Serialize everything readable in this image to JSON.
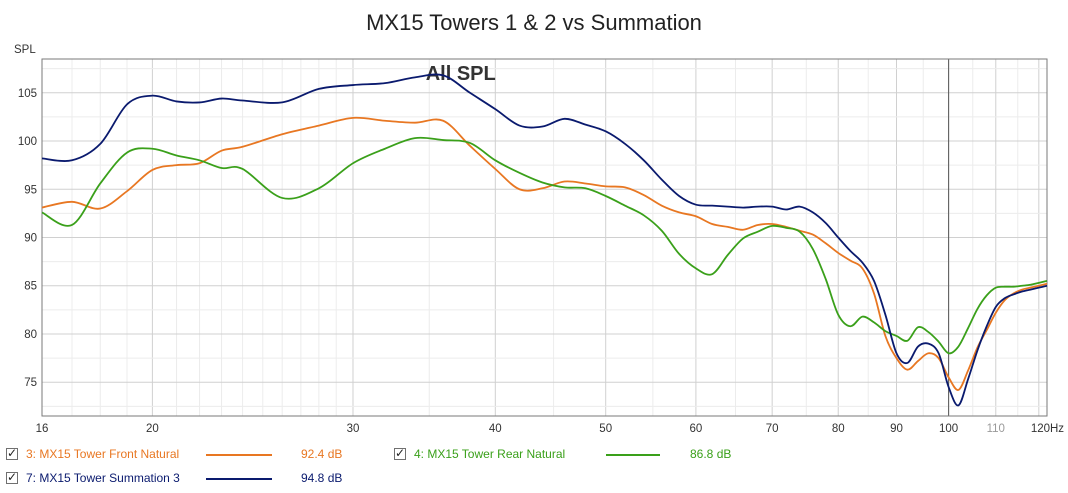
{
  "chart_data": {
    "type": "line",
    "title": "MX15 Towers 1 & 2 vs Summation",
    "ylabel": "SPL",
    "xunit": "Hz",
    "plot_label": "All SPL",
    "xscale": "log",
    "xlim": [
      16,
      122
    ],
    "ylim": [
      71.5,
      108.5
    ],
    "yticks": [
      75,
      80,
      85,
      90,
      95,
      100,
      105
    ],
    "xticks": [
      16,
      20,
      30,
      40,
      50,
      60,
      70,
      80,
      90,
      100,
      110,
      120
    ],
    "xtick_labels": [
      "16",
      "20",
      "30",
      "40",
      "50",
      "60",
      "70",
      "80",
      "90",
      "100",
      "110",
      "120Hz"
    ],
    "grid": true,
    "legend_position": "bottom",
    "series": [
      {
        "name": "3: MX15 Tower Front Natural",
        "color": "#e87722",
        "legend_value": "92.4 dB",
        "x": [
          16,
          17,
          18,
          19,
          20,
          21,
          22,
          23,
          24,
          26,
          28,
          30,
          32,
          34,
          36,
          38,
          40,
          42,
          44,
          46,
          48,
          50,
          52,
          54,
          56,
          58,
          60,
          62,
          64,
          66,
          68,
          70,
          72,
          74,
          76,
          78,
          80,
          82,
          84,
          86,
          88,
          90,
          92,
          94,
          96,
          98,
          100,
          102,
          104,
          106,
          108,
          110,
          112,
          114,
          116,
          118,
          120,
          122
        ],
        "y": [
          93.1,
          93.7,
          93.0,
          94.8,
          97.0,
          97.5,
          97.7,
          99.0,
          99.4,
          100.7,
          101.6,
          102.4,
          102.1,
          101.9,
          102.1,
          99.5,
          97.1,
          95.0,
          95.1,
          95.8,
          95.6,
          95.3,
          95.2,
          94.4,
          93.3,
          92.6,
          92.2,
          91.4,
          91.1,
          90.8,
          91.3,
          91.4,
          91.1,
          90.7,
          90.3,
          89.4,
          88.4,
          87.6,
          86.8,
          84.2,
          79.8,
          77.5,
          76.3,
          77.2,
          78.0,
          77.5,
          75.5,
          74.2,
          76.2,
          78.6,
          80.4,
          82.2,
          83.5,
          84.2,
          84.6,
          84.8,
          85.0,
          85.2
        ]
      },
      {
        "name": "4: MX15 Tower Rear Natural",
        "color": "#3aa01a",
        "legend_value": "86.8 dB",
        "x": [
          16,
          17,
          18,
          19,
          20,
          21,
          22,
          23,
          24,
          26,
          28,
          30,
          32,
          34,
          36,
          38,
          40,
          42,
          44,
          46,
          48,
          50,
          52,
          54,
          56,
          58,
          60,
          62,
          64,
          66,
          68,
          70,
          72,
          74,
          76,
          78,
          80,
          82,
          84,
          86,
          88,
          90,
          92,
          94,
          96,
          98,
          100,
          102,
          104,
          106,
          108,
          110,
          112,
          114,
          116,
          118,
          120,
          122
        ],
        "y": [
          92.6,
          91.3,
          95.6,
          98.8,
          99.2,
          98.5,
          98.0,
          97.2,
          97.1,
          94.1,
          95.1,
          97.7,
          99.2,
          100.3,
          100.1,
          99.8,
          98.0,
          96.7,
          95.7,
          95.2,
          95.1,
          94.3,
          93.3,
          92.3,
          90.7,
          88.3,
          86.8,
          86.2,
          88.2,
          89.9,
          90.6,
          91.2,
          91.0,
          90.6,
          88.8,
          85.7,
          82.0,
          80.8,
          81.8,
          81.2,
          80.3,
          79.8,
          79.3,
          80.7,
          80.2,
          79.2,
          78.0,
          78.7,
          80.6,
          82.6,
          84.0,
          84.8,
          84.9,
          84.9,
          85.0,
          85.1,
          85.3,
          85.5
        ]
      },
      {
        "name": "7: MX15 Tower Summation 3",
        "color": "#0a1a6e",
        "legend_value": "94.8 dB",
        "x": [
          16,
          17,
          18,
          19,
          20,
          21,
          22,
          23,
          24,
          26,
          28,
          30,
          32,
          34,
          36,
          38,
          40,
          42,
          44,
          46,
          48,
          50,
          52,
          54,
          56,
          58,
          60,
          62,
          64,
          66,
          68,
          70,
          72,
          74,
          76,
          78,
          80,
          82,
          84,
          86,
          88,
          90,
          92,
          94,
          96,
          98,
          100,
          102,
          104,
          106,
          108,
          110,
          112,
          114,
          116,
          118,
          120,
          122
        ],
        "y": [
          98.2,
          98.0,
          99.7,
          103.8,
          104.7,
          104.1,
          104.0,
          104.4,
          104.2,
          104.0,
          105.4,
          105.8,
          106.0,
          106.6,
          106.8,
          105.0,
          103.3,
          101.6,
          101.5,
          102.3,
          101.7,
          101.0,
          99.7,
          98.0,
          96.0,
          94.3,
          93.4,
          93.3,
          93.2,
          93.1,
          93.2,
          93.2,
          92.9,
          93.2,
          92.6,
          91.5,
          90.0,
          88.6,
          87.4,
          85.5,
          82.0,
          78.0,
          77.0,
          78.7,
          79.0,
          78.0,
          74.5,
          72.6,
          75.3,
          78.3,
          80.8,
          82.8,
          83.7,
          84.1,
          84.4,
          84.6,
          84.8,
          85.0
        ]
      }
    ]
  }
}
